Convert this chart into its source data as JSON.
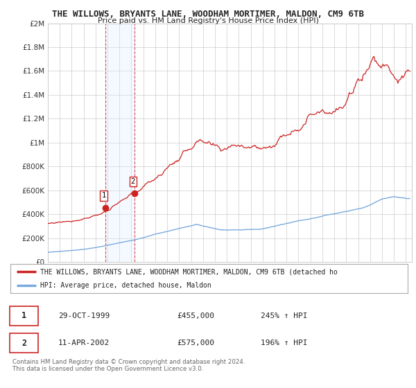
{
  "title": "THE WILLOWS, BRYANTS LANE, WOODHAM MORTIMER, MALDON, CM9 6TB",
  "subtitle": "Price paid vs. HM Land Registry's House Price Index (HPI)",
  "ylim": [
    0,
    2000000
  ],
  "yticks": [
    0,
    200000,
    400000,
    600000,
    800000,
    1000000,
    1200000,
    1400000,
    1600000,
    1800000,
    2000000
  ],
  "ytick_labels": [
    "£0",
    "£200K",
    "£400K",
    "£600K",
    "£800K",
    "£1M",
    "£1.2M",
    "£1.4M",
    "£1.6M",
    "£1.8M",
    "£2M"
  ],
  "hpi_color": "#7aaadd",
  "price_color": "#cc2222",
  "highlight_color": "#ddeeff",
  "sale1_x": 1999.83,
  "sale1_y": 455000,
  "sale1_label": "1",
  "sale2_x": 2002.28,
  "sale2_y": 575000,
  "sale2_label": "2",
  "legend_line1": "THE WILLOWS, BRYANTS LANE, WOODHAM MORTIMER, MALDON, CM9 6TB (detached ho",
  "legend_line2": "HPI: Average price, detached house, Maldon",
  "table_row1": [
    "1",
    "29-OCT-1999",
    "£455,000",
    "245% ↑ HPI"
  ],
  "table_row2": [
    "2",
    "11-APR-2002",
    "£575,000",
    "196% ↑ HPI"
  ],
  "footnote": "Contains HM Land Registry data © Crown copyright and database right 2024.\nThis data is licensed under the Open Government Licence v3.0.",
  "xmin": 1995.0,
  "xmax": 2025.5,
  "background_color": "#ffffff",
  "grid_color": "#cccccc"
}
